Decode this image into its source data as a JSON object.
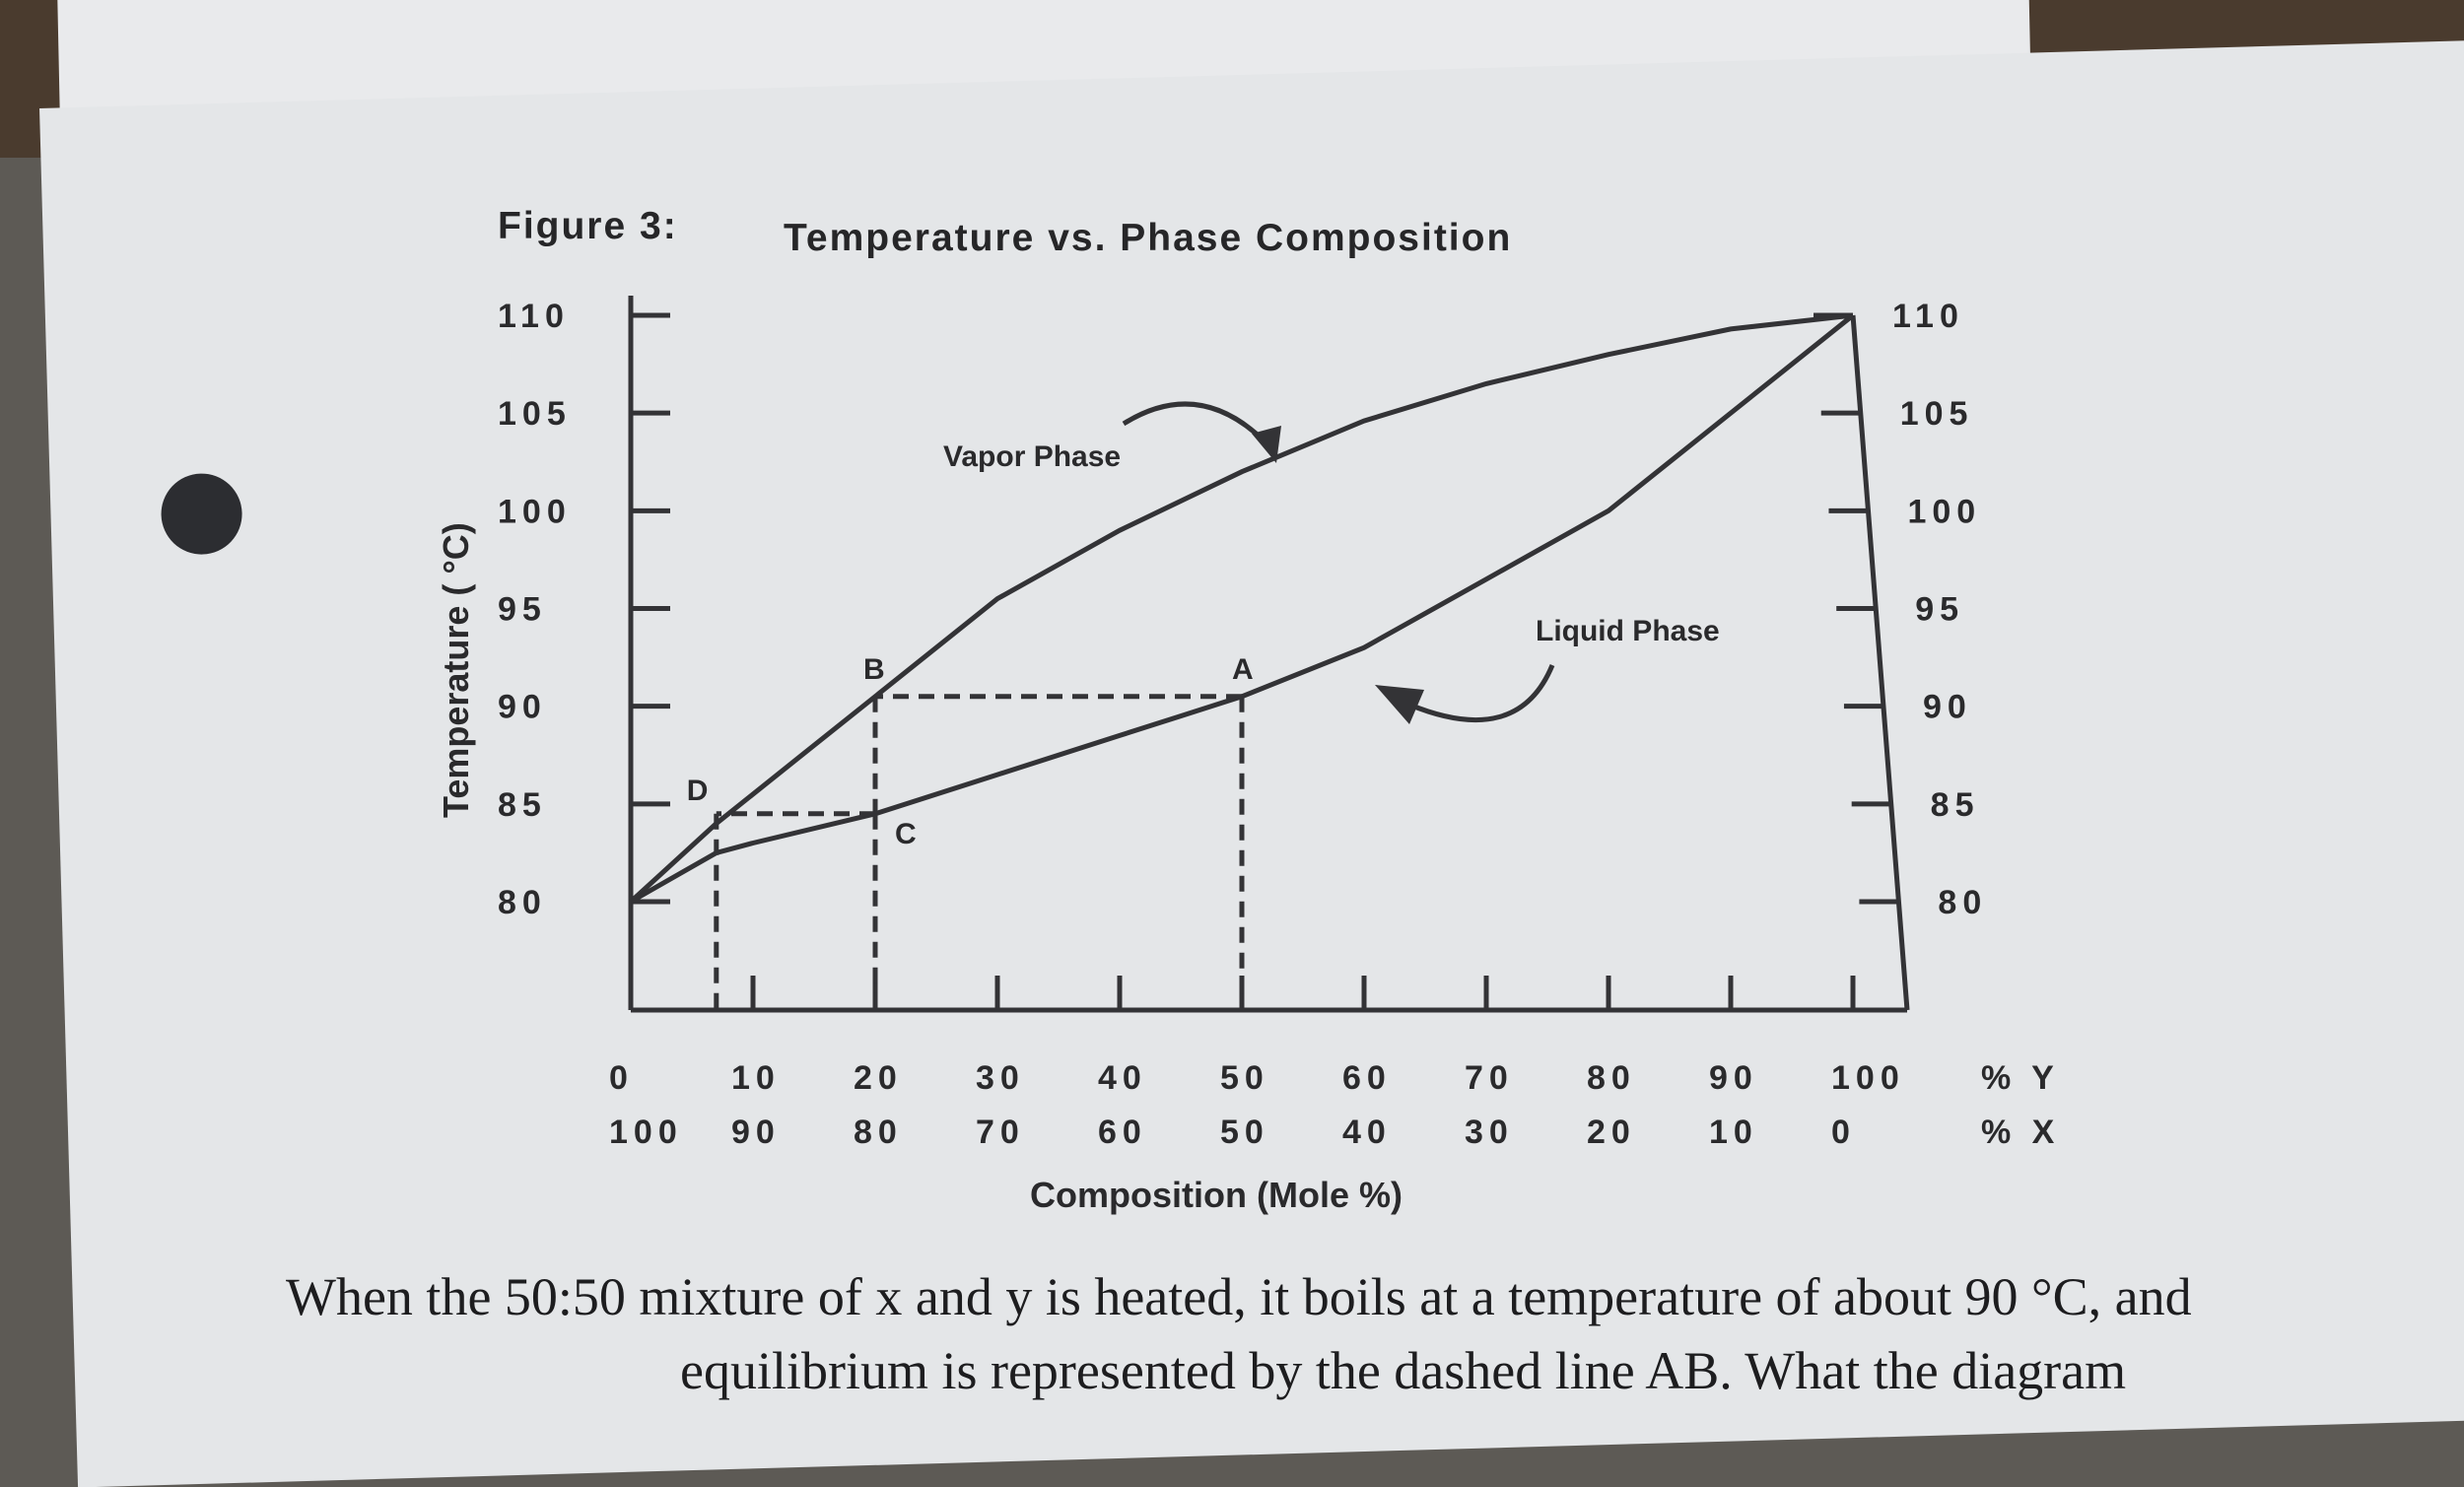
{
  "figure": {
    "title": "Figure 3:",
    "subtitle": "Temperature vs. Phase Composition"
  },
  "question_text": "When the 50:50 mixture of x and y is heated, it boils at a temperature of about 90 °C, and",
  "question_text_2": "equilibrium is represented by the dashed line AB. What the diagram",
  "chart_data": {
    "type": "line",
    "title": "Temperature vs. Phase Composition",
    "xlabel": "Composition (Mole %)",
    "ylabel": "Temperature ( °C)",
    "xlim": [
      0,
      100
    ],
    "ylim": [
      80,
      110
    ],
    "x_ticks_y": [
      "0",
      "10",
      "20",
      "30",
      "40",
      "50",
      "60",
      "70",
      "80",
      "90",
      "100"
    ],
    "x_ticks_x": [
      "100",
      "90",
      "80",
      "70",
      "60",
      "50",
      "40",
      "30",
      "20",
      "10",
      "0"
    ],
    "x_axis_names": [
      "% Y",
      "% X"
    ],
    "y_ticks": [
      "80",
      "85",
      "90",
      "95",
      "100",
      "105",
      "110"
    ],
    "series": [
      {
        "name": "Vapor Phase",
        "x": [
          0,
          7,
          10,
          15,
          20,
          30,
          40,
          50,
          60,
          70,
          80,
          90,
          100
        ],
        "y": [
          80,
          84,
          85.5,
          88,
          90.5,
          95.5,
          99,
          102,
          104.6,
          106.5,
          108,
          109.3,
          110
        ]
      },
      {
        "name": "Liquid Phase",
        "x": [
          0,
          7,
          10,
          20,
          30,
          40,
          45,
          50,
          60,
          70,
          80,
          90,
          100
        ],
        "y": [
          80,
          82.5,
          83,
          84.5,
          86.5,
          88.5,
          89.5,
          90.5,
          93,
          96.5,
          100,
          105,
          110
        ]
      }
    ],
    "points": [
      {
        "label": "A",
        "x": 50,
        "y": 90.5
      },
      {
        "label": "B",
        "x": 20,
        "y": 90.5
      },
      {
        "label": "C",
        "x": 20,
        "y": 84.5
      },
      {
        "label": "D",
        "x": 7,
        "y": 84.5
      }
    ],
    "dashed_segments": [
      {
        "from": "A",
        "to": "B"
      },
      {
        "from": "B",
        "to": "C"
      },
      {
        "from": "C",
        "to": "D"
      }
    ],
    "annotations": [
      "Vapor Phase",
      "Liquid Phase"
    ],
    "legend": "none",
    "grid": false,
    "colors": {
      "line": "#333336",
      "page": "#e4e6e8"
    }
  }
}
